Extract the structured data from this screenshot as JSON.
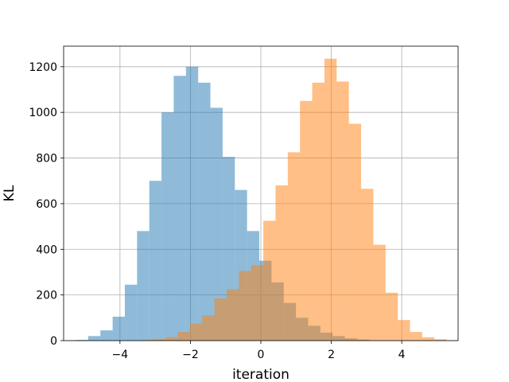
{
  "chart_data": {
    "type": "bar",
    "title": "",
    "xlabel": "iteration",
    "ylabel": "KL",
    "xlim": [
      -5.6,
      5.6
    ],
    "ylim": [
      0,
      1290
    ],
    "xticks": [
      -4,
      -2,
      0,
      2,
      4
    ],
    "yticks": [
      0,
      200,
      400,
      600,
      800,
      1000,
      1200
    ],
    "grid": true,
    "legend": "none",
    "bin_width": 0.347,
    "series": [
      {
        "color": "#1f77b4",
        "alpha": 0.5,
        "bins": [
          {
            "x0": -5.25,
            "y": 3
          },
          {
            "x0": -4.903,
            "y": 20
          },
          {
            "x0": -4.556,
            "y": 45
          },
          {
            "x0": -4.209,
            "y": 105
          },
          {
            "x0": -3.862,
            "y": 245
          },
          {
            "x0": -3.515,
            "y": 480
          },
          {
            "x0": -3.168,
            "y": 700
          },
          {
            "x0": -2.821,
            "y": 1000
          },
          {
            "x0": -2.474,
            "y": 1160
          },
          {
            "x0": -2.127,
            "y": 1200
          },
          {
            "x0": -1.78,
            "y": 1130
          },
          {
            "x0": -1.433,
            "y": 1020
          },
          {
            "x0": -1.086,
            "y": 805
          },
          {
            "x0": -0.739,
            "y": 660
          },
          {
            "x0": -0.392,
            "y": 480
          },
          {
            "x0": -0.045,
            "y": 350
          },
          {
            "x0": 0.302,
            "y": 255
          },
          {
            "x0": 0.649,
            "y": 165
          },
          {
            "x0": 0.996,
            "y": 100
          },
          {
            "x0": 1.343,
            "y": 65
          },
          {
            "x0": 1.69,
            "y": 35
          },
          {
            "x0": 2.037,
            "y": 20
          },
          {
            "x0": 2.384,
            "y": 10
          },
          {
            "x0": 2.731,
            "y": 5
          }
        ]
      },
      {
        "color": "#ff7f0e",
        "alpha": 0.5,
        "bins": [
          {
            "x0": -3.4,
            "y": 3
          },
          {
            "x0": -3.053,
            "y": 8
          },
          {
            "x0": -2.706,
            "y": 15
          },
          {
            "x0": -2.359,
            "y": 38
          },
          {
            "x0": -2.012,
            "y": 75
          },
          {
            "x0": -1.665,
            "y": 110
          },
          {
            "x0": -1.318,
            "y": 185
          },
          {
            "x0": -0.971,
            "y": 225
          },
          {
            "x0": -0.624,
            "y": 305
          },
          {
            "x0": -0.277,
            "y": 330
          },
          {
            "x0": 0.07,
            "y": 525
          },
          {
            "x0": 0.417,
            "y": 680
          },
          {
            "x0": 0.764,
            "y": 825
          },
          {
            "x0": 1.111,
            "y": 1050
          },
          {
            "x0": 1.458,
            "y": 1130
          },
          {
            "x0": 1.805,
            "y": 1235
          },
          {
            "x0": 2.152,
            "y": 1135
          },
          {
            "x0": 2.499,
            "y": 950
          },
          {
            "x0": 2.846,
            "y": 665
          },
          {
            "x0": 3.193,
            "y": 420
          },
          {
            "x0": 3.54,
            "y": 210
          },
          {
            "x0": 3.887,
            "y": 90
          },
          {
            "x0": 4.234,
            "y": 38
          },
          {
            "x0": 4.581,
            "y": 15
          },
          {
            "x0": 4.928,
            "y": 6
          }
        ]
      }
    ]
  }
}
